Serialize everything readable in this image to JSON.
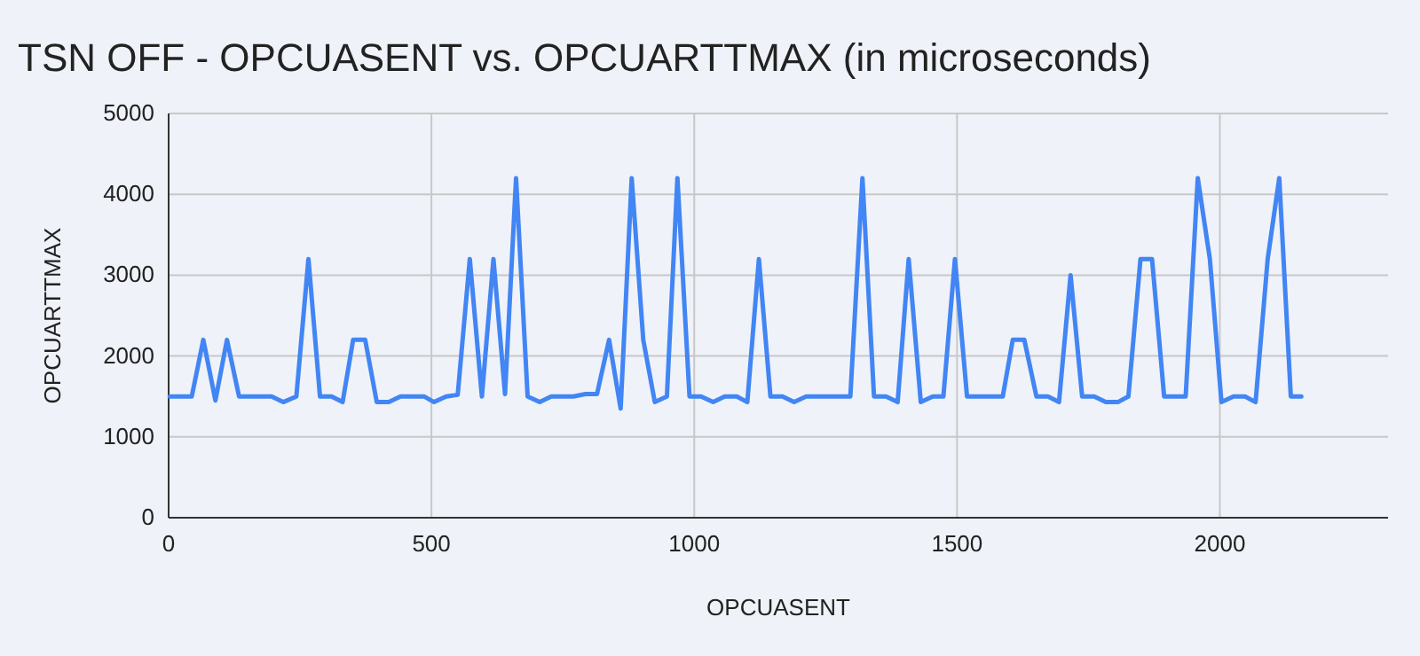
{
  "chart_data": {
    "type": "line",
    "title": "TSN OFF - OPCUASENT vs. OPCUARTTMAX (in microseconds)",
    "xlabel": "OPCUASENT",
    "ylabel": "OPCUARTTMAX",
    "x": [
      2,
      44,
      66,
      89,
      111,
      134,
      196,
      218,
      243,
      266,
      288,
      310,
      331,
      351,
      374,
      396,
      419,
      441,
      486,
      505,
      528,
      550,
      573,
      596,
      618,
      640,
      661,
      683,
      706,
      728,
      770,
      793,
      815,
      838,
      860,
      881,
      903,
      925,
      948,
      968,
      991,
      1013,
      1036,
      1058,
      1081,
      1101,
      1123,
      1145,
      1168,
      1190,
      1213,
      1297,
      1320,
      1342,
      1365,
      1387,
      1408,
      1431,
      1454,
      1474,
      1496,
      1519,
      1587,
      1606,
      1628,
      1651,
      1673,
      1694,
      1716,
      1738,
      1761,
      1783,
      1806,
      1826,
      1849,
      1871,
      1894,
      1935,
      1958,
      1981,
      2003,
      2026,
      2048,
      2068,
      2091,
      2113,
      2135,
      2155
    ],
    "series": [
      {
        "color": "#4285f4",
        "values": [
          1500,
          1500,
          2200,
          1450,
          2200,
          1500,
          1500,
          1430,
          1500,
          3200,
          1500,
          1500,
          1430,
          2200,
          2200,
          1430,
          1430,
          1500,
          1500,
          1430,
          1500,
          1520,
          3200,
          1500,
          3200,
          1530,
          4200,
          1500,
          1430,
          1500,
          1500,
          1530,
          1530,
          2200,
          1350,
          4200,
          2200,
          1430,
          1500,
          4200,
          1500,
          1500,
          1430,
          1500,
          1500,
          1430,
          3200,
          1500,
          1500,
          1430,
          1500,
          1500,
          4200,
          1500,
          1500,
          1430,
          3200,
          1430,
          1500,
          1500,
          3200,
          1500,
          1500,
          2200,
          2200,
          1500,
          1500,
          1430,
          3000,
          1500,
          1500,
          1430,
          1430,
          1500,
          3200,
          3200,
          1500,
          1500,
          4200,
          3200,
          1430,
          1500,
          1500,
          1430,
          3200,
          4200,
          1500,
          1500
        ]
      }
    ],
    "xlim": [
      0,
      2320
    ],
    "xticks": [
      0,
      500,
      1000,
      1500,
      2000
    ],
    "ylim": [
      0,
      5000
    ],
    "yticks": [
      0,
      1000,
      2000,
      3000,
      4000,
      5000
    ],
    "grid": true,
    "marker": "none",
    "line_style": "solid"
  }
}
